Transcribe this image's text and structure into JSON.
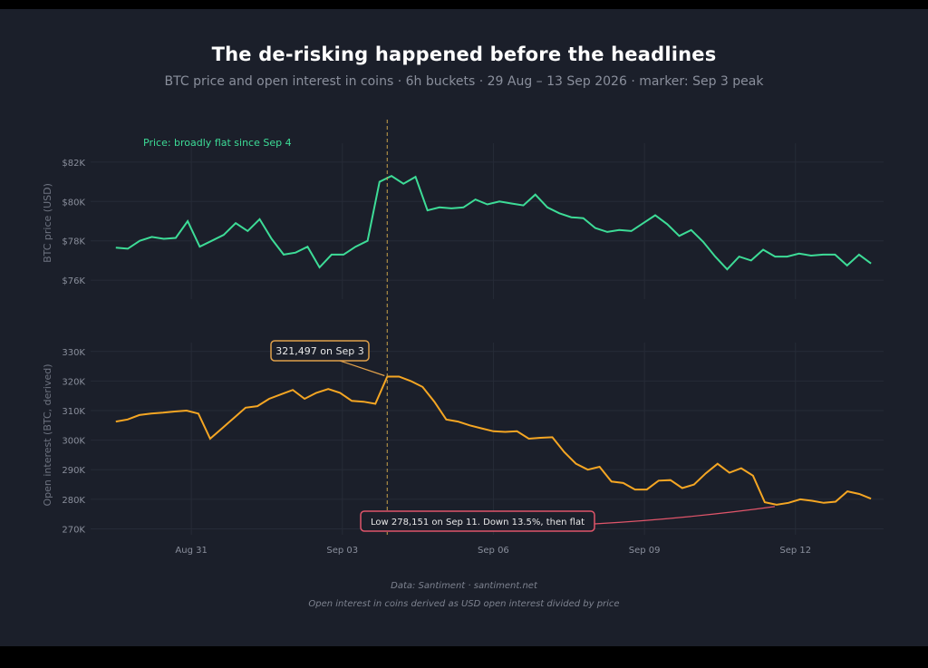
{
  "title": "The de-risking happened before the headlines",
  "subtitle": "BTC price and open interest in coins · 6h buckets · 29 Aug – 13 Sep 2026 · marker: Sep 3 peak",
  "footer": {
    "source": "Data: Santiment · santiment.net",
    "note": "Open interest in coins derived as USD open interest divided by price"
  },
  "colors": {
    "background": "#1b1f2a",
    "price_line": "#3ddc97",
    "oi_line": "#f5a623",
    "marker_line": "#c9a24a",
    "peak_box": "#e0a04a",
    "low_box": "#e0556a"
  },
  "chart_data": [
    {
      "type": "line",
      "panel": "top",
      "ylabel": "BTC price (USD)",
      "yticks": [
        "$76K",
        "$78K",
        "$80K",
        "$82K"
      ],
      "ytick_values": [
        76000,
        78000,
        80000,
        82000
      ],
      "ylim": [
        75500,
        82500
      ],
      "xlim": [
        "2026-08-29",
        "2026-09-13T18:00"
      ],
      "grid": true,
      "annotation": "Price: broadly flat since Sep 4",
      "series": [
        {
          "values": [
            77650,
            77600,
            78000,
            78200,
            78100,
            78150,
            79000,
            77700,
            78000,
            78300,
            78900,
            78500,
            79100,
            78100,
            77300,
            77400,
            77700,
            76650,
            77300,
            77300,
            77700,
            78000,
            81000,
            81300,
            80900,
            81250,
            79550,
            79700,
            79650,
            79700,
            80100,
            79850,
            80000,
            79900,
            79800,
            80350,
            79700,
            79400,
            79200,
            79150,
            78650,
            78450,
            78550,
            78500,
            78900,
            79300,
            78850,
            78250,
            78550,
            77950,
            77200,
            76550,
            77200,
            77000,
            77550,
            77200,
            77200,
            77350,
            77250,
            77300,
            77300,
            76750,
            77300,
            76850
          ]
        }
      ]
    },
    {
      "type": "line",
      "panel": "bottom",
      "ylabel": "Open interest (BTC, derived)",
      "yticks": [
        "270K",
        "280K",
        "290K",
        "300K",
        "310K",
        "320K",
        "330K"
      ],
      "ytick_values": [
        270000,
        280000,
        290000,
        300000,
        310000,
        320000,
        330000
      ],
      "ylim": [
        268000,
        333000
      ],
      "xticks": [
        "Aug 31",
        "Sep 03",
        "Sep 06",
        "Sep 09",
        "Sep 12"
      ],
      "xtick_values": [
        "2026-08-31",
        "2026-09-03",
        "2026-09-06",
        "2026-09-09",
        "2026-09-12"
      ],
      "xlim": [
        "2026-08-29",
        "2026-09-13T18:00"
      ],
      "grid": true,
      "marker_date": "2026-09-03",
      "annotations": [
        {
          "text": "321,497 on Sep 3",
          "date": "2026-09-03",
          "value": 321497
        },
        {
          "text": "Low 278,151 on Sep 11. Down 13.5%, then flat",
          "date": "2026-09-11",
          "value": 278151
        }
      ],
      "series": [
        {
          "values": [
            306300,
            307000,
            308500,
            309000,
            309300,
            309700,
            310000,
            309000,
            300500,
            304000,
            307500,
            311000,
            311500,
            314000,
            315500,
            317000,
            314000,
            316000,
            317300,
            316000,
            313300,
            313000,
            312300,
            321497,
            321500,
            320000,
            318000,
            313000,
            307000,
            306300,
            305000,
            304000,
            303000,
            302800,
            303000,
            300500,
            300800,
            301000,
            296000,
            292000,
            290000,
            291000,
            286000,
            285500,
            283300,
            283300,
            286300,
            286500,
            283800,
            285000,
            288800,
            292000,
            289000,
            290500,
            288000,
            279000,
            278151,
            278800,
            280000,
            279500,
            278800,
            279200,
            282700,
            281800,
            280200
          ]
        }
      ]
    }
  ]
}
